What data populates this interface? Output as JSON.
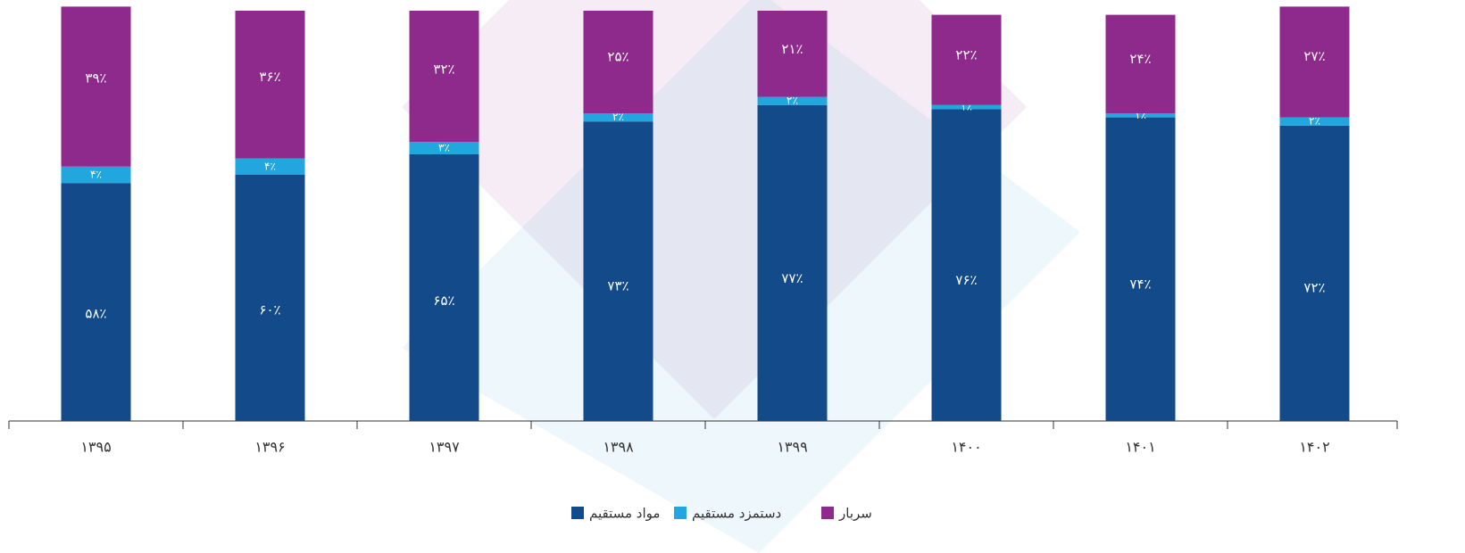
{
  "chart_data": {
    "type": "stacked_bar",
    "categories": [
      "۱۳۹۵",
      "۱۳۹۶",
      "۱۳۹۷",
      "۱۳۹۸",
      "۱۳۹۹",
      "۱۴۰۰",
      "۱۴۰۱",
      "۱۴۰۲"
    ],
    "series": [
      {
        "name": "مواد مستقیم",
        "color": "#124a8a",
        "values": [
          58,
          60,
          65,
          73,
          77,
          76,
          74,
          72
        ],
        "value_labels": [
          "۵۸٪",
          "۶۰٪",
          "۶۵٪",
          "۷۳٪",
          "۷۷٪",
          "۷۶٪",
          "۷۴٪",
          "۷۲٪"
        ]
      },
      {
        "name": "دستمزد مستقیم",
        "color": "#22a6de",
        "values": [
          4,
          4,
          3,
          2,
          2,
          1,
          1,
          2
        ],
        "value_labels": [
          "۴٪",
          "۴٪",
          "۳٪",
          "۲٪",
          "۲٪",
          "۱٪",
          "۱٪",
          "۲٪"
        ]
      },
      {
        "name": "سربار",
        "color": "#8e2a8b",
        "values": [
          39,
          36,
          32,
          25,
          21,
          22,
          24,
          27
        ],
        "value_labels": [
          "۳۹٪",
          "۳۶٪",
          "۳۲٪",
          "۲۵٪",
          "۲۱٪",
          "۲۲٪",
          "۲۴٪",
          "۲۷٪"
        ]
      }
    ],
    "ylim": [
      0,
      100
    ],
    "legend": "bottom"
  }
}
